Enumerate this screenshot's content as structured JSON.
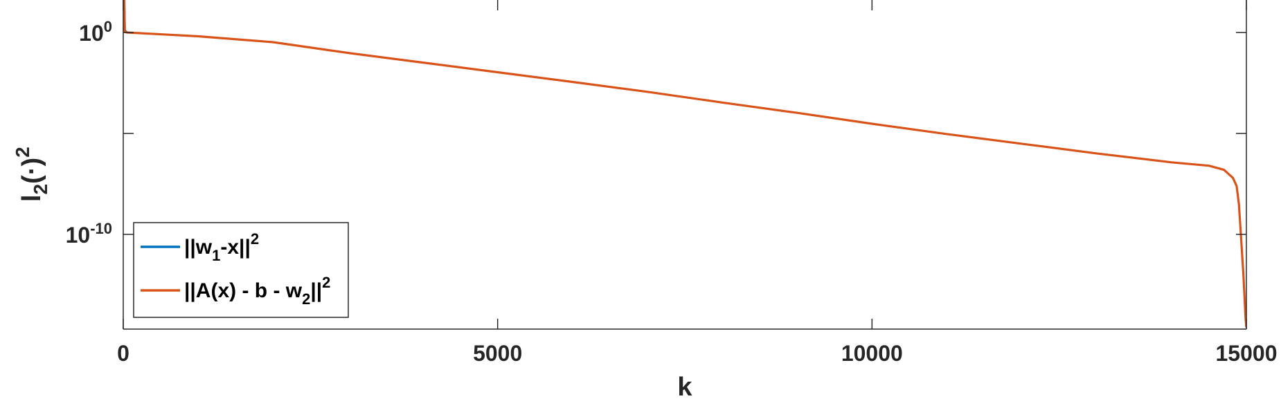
{
  "chart_data": {
    "type": "line",
    "xlabel": "k",
    "ylabel": "l",
    "ylabel_sub": "2",
    "ylabel_rest": "(·)",
    "ylabel_sup": "2",
    "xlim": [
      0,
      15000
    ],
    "ylim_exp": [
      -14.6,
      15
    ],
    "yscale": "log",
    "grid": false,
    "legend_position": "bottom-left",
    "x_ticks": [
      {
        "value": 0,
        "label": "0"
      },
      {
        "value": 5000,
        "label": "5000"
      },
      {
        "value": 10000,
        "label": "10000"
      },
      {
        "value": 15000,
        "label": "15000"
      }
    ],
    "y_ticks": [
      {
        "exp": 0,
        "base": "10",
        "sup": "0"
      },
      {
        "exp": -5,
        "base": "",
        "sup": ""
      },
      {
        "exp": -10,
        "base": "10",
        "sup": "-10"
      }
    ],
    "series": [
      {
        "name_parts": [
          "||w",
          "1",
          "-x||",
          "2"
        ],
        "color": "#0072BD",
        "points": [
          [
            0,
            4.5
          ],
          [
            20,
            0.1
          ],
          [
            50,
            0.0
          ]
        ]
      },
      {
        "name_parts": [
          "||A(x) - b - w",
          "2",
          "||",
          "2"
        ],
        "color": "#D95319",
        "points": [
          [
            0,
            4.2
          ],
          [
            20,
            0.05
          ],
          [
            50,
            0.0
          ],
          [
            1000,
            -0.19
          ],
          [
            2000,
            -0.48
          ],
          [
            3000,
            -1.01
          ],
          [
            4000,
            -1.49
          ],
          [
            5000,
            -1.97
          ],
          [
            6000,
            -2.45
          ],
          [
            7000,
            -2.94
          ],
          [
            8000,
            -3.47
          ],
          [
            9000,
            -3.98
          ],
          [
            10000,
            -4.52
          ],
          [
            11000,
            -5.03
          ],
          [
            12000,
            -5.51
          ],
          [
            13000,
            -5.99
          ],
          [
            14000,
            -6.43
          ],
          [
            14500,
            -6.6
          ],
          [
            14700,
            -6.8
          ],
          [
            14820,
            -7.2
          ],
          [
            14870,
            -7.6
          ],
          [
            14900,
            -8.5
          ],
          [
            14930,
            -10.2
          ],
          [
            14960,
            -12.0
          ],
          [
            14990,
            -14.2
          ],
          [
            15000,
            -14.6
          ]
        ]
      }
    ]
  }
}
